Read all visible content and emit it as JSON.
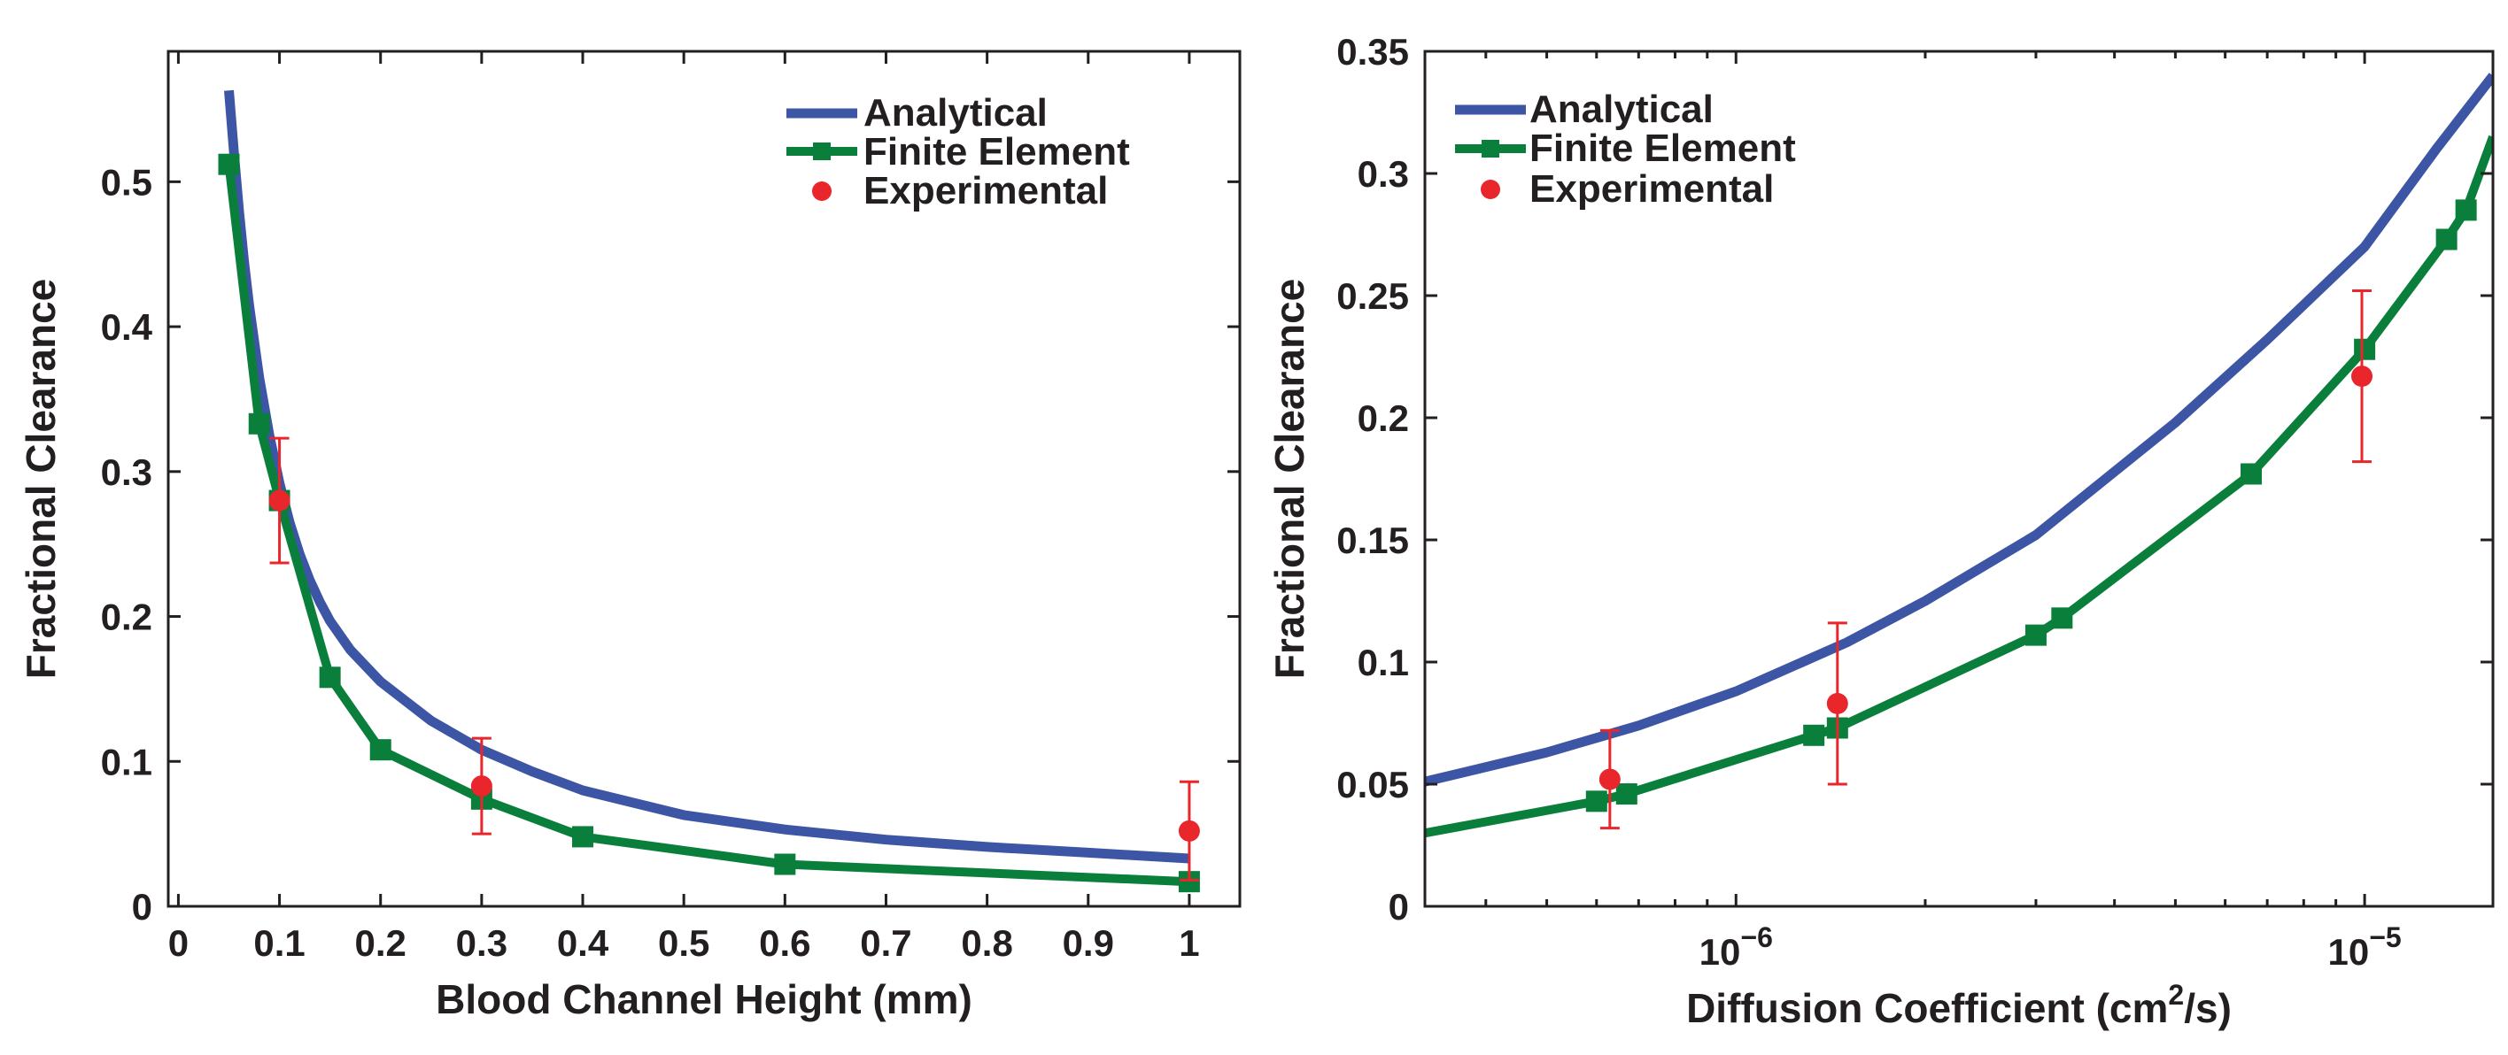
{
  "colors": {
    "analytical": "#3c55a4",
    "finite_element": "#0a7f3b",
    "experimental": "#e8262b",
    "axis": "#231f20"
  },
  "chart_data": [
    {
      "type": "line",
      "id": "left",
      "xlabel": "Blood Channel Height (mm)",
      "ylabel": "Fractional Clearance",
      "xscale": "linear",
      "xlim": [
        -0.01,
        1.05
      ],
      "ylim": [
        0,
        0.59
      ],
      "xticks": [
        {
          "value": 0,
          "label": "0"
        },
        {
          "value": 0.1,
          "label": "0.1"
        },
        {
          "value": 0.2,
          "label": "0.2"
        },
        {
          "value": 0.3,
          "label": "0.3"
        },
        {
          "value": 0.4,
          "label": "0.4"
        },
        {
          "value": 0.5,
          "label": "0.5"
        },
        {
          "value": 0.6,
          "label": "0.6"
        },
        {
          "value": 0.7,
          "label": "0.7"
        },
        {
          "value": 0.8,
          "label": "0.8"
        },
        {
          "value": 0.9,
          "label": "0.9"
        },
        {
          "value": 1,
          "label": "1"
        }
      ],
      "yticks": [
        {
          "value": 0,
          "label": "0"
        },
        {
          "value": 0.1,
          "label": "0.1"
        },
        {
          "value": 0.2,
          "label": "0.2"
        },
        {
          "value": 0.3,
          "label": "0.3"
        },
        {
          "value": 0.4,
          "label": "0.4"
        },
        {
          "value": 0.5,
          "label": "0.5"
        }
      ],
      "legend": {
        "position": "top-right",
        "entries": [
          "Analytical",
          "Finite Element",
          "Experimental"
        ]
      },
      "series": [
        {
          "name": "Analytical",
          "style": "line",
          "x": [
            0.05,
            0.055,
            0.06,
            0.065,
            0.07,
            0.08,
            0.09,
            0.1,
            0.11,
            0.12,
            0.13,
            0.14,
            0.15,
            0.17,
            0.2,
            0.25,
            0.3,
            0.35,
            0.4,
            0.5,
            0.6,
            0.7,
            0.8,
            0.9,
            1.0
          ],
          "y": [
            0.563,
            0.52,
            0.48,
            0.445,
            0.415,
            0.365,
            0.325,
            0.292,
            0.265,
            0.243,
            0.225,
            0.21,
            0.197,
            0.177,
            0.155,
            0.128,
            0.108,
            0.093,
            0.08,
            0.063,
            0.053,
            0.046,
            0.041,
            0.037,
            0.033
          ]
        },
        {
          "name": "Finite Element",
          "style": "line-square",
          "x": [
            0.05,
            0.08,
            0.1,
            0.15,
            0.2,
            0.3,
            0.4,
            0.6,
            1.0
          ],
          "y": [
            0.512,
            0.333,
            0.28,
            0.158,
            0.108,
            0.074,
            0.048,
            0.029,
            0.017
          ]
        },
        {
          "name": "Experimental",
          "style": "errorbar",
          "x": [
            0.1,
            0.3,
            1.0
          ],
          "y": [
            0.28,
            0.083,
            0.052
          ],
          "error": [
            0.043,
            0.033,
            0.034
          ]
        }
      ]
    },
    {
      "type": "line",
      "id": "right",
      "xlabel": "Diffusion Coefficient (cm²/s)",
      "xlabel_parts": {
        "pre": "Diffusion Coefficient (cm",
        "sup": "2",
        "post": "/s)"
      },
      "ylabel": "Fractional Clearance",
      "xscale": "log",
      "xlim": [
        3.2e-07,
        1.6e-05
      ],
      "ylim": [
        0,
        0.35
      ],
      "xticks": [
        {
          "value": 1e-06,
          "base": "10",
          "exp": "−6"
        },
        {
          "value": 1e-05,
          "base": "10",
          "exp": "−5"
        }
      ],
      "yticks": [
        {
          "value": 0,
          "label": "0"
        },
        {
          "value": 0.05,
          "label": "0.05"
        },
        {
          "value": 0.1,
          "label": "0.1"
        },
        {
          "value": 0.15,
          "label": "0.15"
        },
        {
          "value": 0.2,
          "label": "0.2"
        },
        {
          "value": 0.25,
          "label": "0.25"
        },
        {
          "value": 0.3,
          "label": "0.3"
        },
        {
          "value": 0.35,
          "label": "0.35"
        }
      ],
      "legend": {
        "position": "top-left",
        "entries": [
          "Analytical",
          "Finite Element",
          "Experimental"
        ]
      },
      "series": [
        {
          "name": "Analytical",
          "style": "line",
          "x": [
            3.2e-07,
            5e-07,
            7e-07,
            1e-06,
            1.5e-06,
            2e-06,
            3e-06,
            5e-06,
            7e-06,
            1e-05,
            1.3e-05,
            1.6e-05
          ],
          "y": [
            0.051,
            0.063,
            0.074,
            0.088,
            0.108,
            0.125,
            0.152,
            0.198,
            0.232,
            0.27,
            0.31,
            0.34
          ]
        },
        {
          "name": "Finite Element",
          "style": "line-square",
          "x": [
            3.2e-07,
            6e-07,
            6.7e-07,
            1.33e-06,
            1.45e-06,
            3e-06,
            3.3e-06,
            6.6e-06,
            1e-05,
            1.35e-05,
            1.45e-05,
            1.6e-05
          ],
          "y": [
            0.03,
            0.043,
            0.046,
            0.07,
            0.073,
            0.111,
            0.118,
            0.177,
            0.228,
            0.273,
            0.285,
            0.315
          ]
        },
        {
          "name": "Experimental",
          "style": "errorbar",
          "x": [
            6.3e-07,
            1.45e-06,
            9.9e-06
          ],
          "y": [
            0.052,
            0.083,
            0.217
          ],
          "error": [
            0.02,
            0.033,
            0.035
          ]
        }
      ]
    }
  ]
}
